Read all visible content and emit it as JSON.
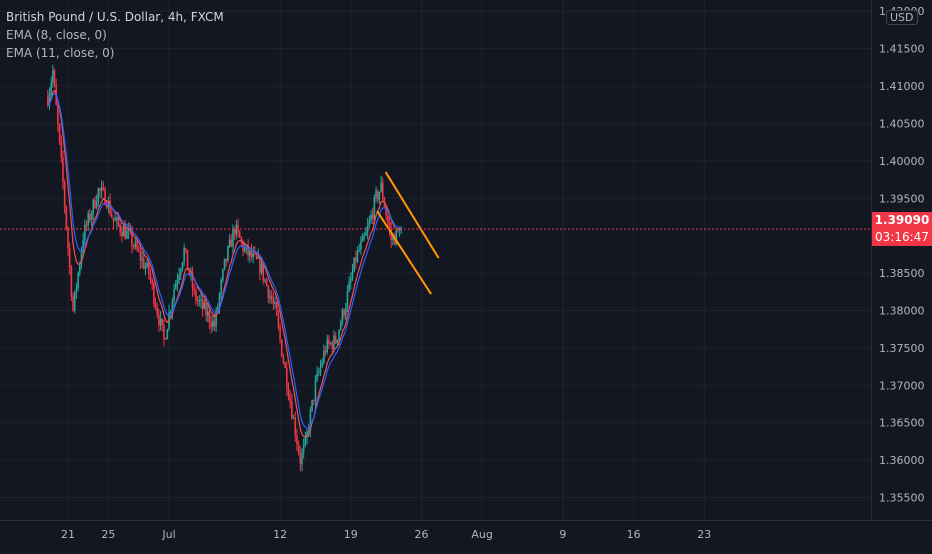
{
  "legend": {
    "title": "British Pound / U.S. Dollar, 4h, FXCM",
    "ema1": "EMA (8, close, 0)",
    "ema2": "EMA (11, close, 0)"
  },
  "currency": "USD",
  "price_tag": {
    "price": "1.39090",
    "countdown": "03:16:47"
  },
  "colors": {
    "background": "#131722",
    "up": "#26a69a",
    "down": "#f23645",
    "ema_fast": "#ef5350",
    "ema_slow": "#2962ff",
    "channel": "#ff9800",
    "axis_text": "#b2b5be",
    "price_line": "#f23645"
  },
  "chart_data": {
    "type": "candlestick",
    "symbol": "GBPUSD",
    "interval": "4h",
    "ylim": [
      1.352,
      1.4215
    ],
    "y_ticks": [
      "1.42000",
      "1.41500",
      "1.41000",
      "1.40500",
      "1.40000",
      "1.39500",
      "1.38500",
      "1.38000",
      "1.37500",
      "1.37000",
      "1.36500",
      "1.36000",
      "1.35500"
    ],
    "x_ticks": [
      {
        "label": "21",
        "t": 2
      },
      {
        "label": "25",
        "t": 6
      },
      {
        "label": "Jul",
        "t": 12
      },
      {
        "label": "12",
        "t": 23
      },
      {
        "label": "19",
        "t": 30
      },
      {
        "label": "26",
        "t": 37
      },
      {
        "label": "Aug",
        "t": 43
      },
      {
        "label": "9",
        "t": 51
      },
      {
        "label": "16",
        "t": 58
      },
      {
        "label": "23",
        "t": 65
      }
    ],
    "candles_per_day": 6,
    "last_price": 1.3909,
    "close_path": [
      [
        0,
        1.4085
      ],
      [
        0.5,
        1.412
      ],
      [
        1.5,
        1.397
      ],
      [
        2.5,
        1.38
      ],
      [
        3.5,
        1.39
      ],
      [
        5,
        1.396
      ],
      [
        5.8,
        1.395
      ],
      [
        6.5,
        1.392
      ],
      [
        8,
        1.39
      ],
      [
        10,
        1.385
      ],
      [
        11.5,
        1.376
      ],
      [
        12.5,
        1.383
      ],
      [
        13.5,
        1.388
      ],
      [
        14.5,
        1.382
      ],
      [
        16.5,
        1.378
      ],
      [
        17.5,
        1.386
      ],
      [
        18.5,
        1.391
      ],
      [
        19.5,
        1.388
      ],
      [
        21,
        1.386
      ],
      [
        22.5,
        1.38
      ],
      [
        23.5,
        1.372
      ],
      [
        24.5,
        1.364
      ],
      [
        25,
        1.36
      ],
      [
        25.5,
        1.362
      ],
      [
        26.5,
        1.37
      ],
      [
        27.5,
        1.375
      ],
      [
        28.5,
        1.376
      ],
      [
        29.5,
        1.381
      ],
      [
        30.5,
        1.387
      ],
      [
        31.5,
        1.39
      ],
      [
        32.5,
        1.395
      ],
      [
        33,
        1.3965
      ],
      [
        33.5,
        1.393
      ],
      [
        34,
        1.3895
      ],
      [
        34.5,
        1.39
      ],
      [
        35,
        1.3909
      ]
    ],
    "channel_lines": [
      {
        "t1": 33.45,
        "p1": 1.3985,
        "t2": 38.7,
        "p2": 1.387
      },
      {
        "t1": 32.6,
        "p1": 1.3933,
        "t2": 37.95,
        "p2": 1.3822
      }
    ],
    "ema_periods": [
      8,
      11
    ]
  }
}
